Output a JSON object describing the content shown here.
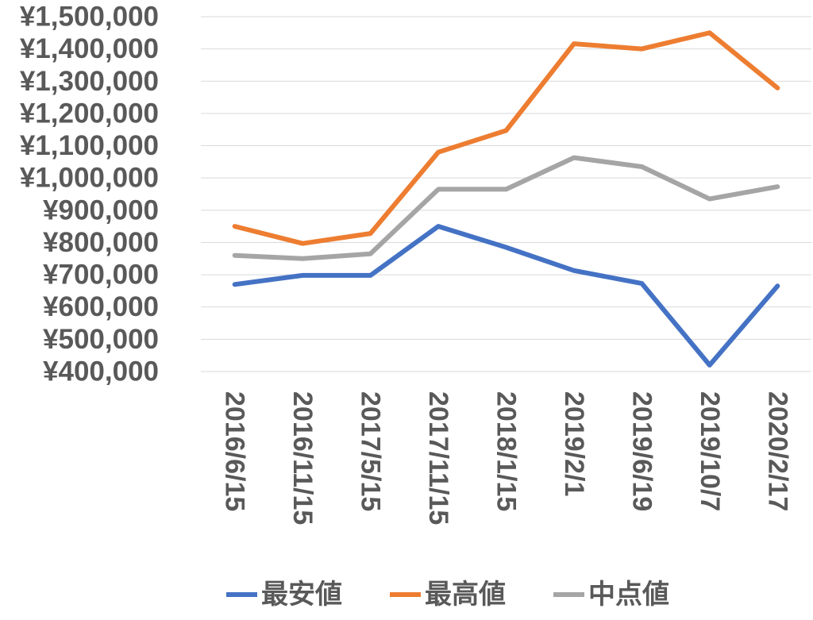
{
  "chart_data": {
    "type": "line",
    "categories": [
      "2016/6/15",
      "2016/11/15",
      "2017/5/15",
      "2017/11/15",
      "2018/1/15",
      "2019/2/1",
      "2019/6/19",
      "2019/10/7",
      "2020/2/17"
    ],
    "series": [
      {
        "name": "最安値",
        "color": "#4472c4",
        "values": [
          670000,
          698000,
          698000,
          850000,
          785000,
          713000,
          673000,
          420000,
          665000
        ]
      },
      {
        "name": "最高値",
        "color": "#ed7d31",
        "values": [
          850000,
          797000,
          828000,
          1080000,
          1147000,
          1416000,
          1400000,
          1450000,
          1279000
        ]
      },
      {
        "name": "中点値",
        "color": "#a5a5a5",
        "values": [
          760000,
          750000,
          765000,
          965000,
          965000,
          1063000,
          1035000,
          935000,
          973000
        ]
      }
    ],
    "ylim": [
      400000,
      1500000
    ],
    "yticks": [
      400000,
      500000,
      600000,
      700000,
      800000,
      900000,
      1000000,
      1100000,
      1200000,
      1300000,
      1400000,
      1500000
    ],
    "ytick_labels": [
      "¥400,000",
      "¥500,000",
      "¥600,000",
      "¥700,000",
      "¥800,000",
      "¥900,000",
      "¥1,000,000",
      "¥1,100,000",
      "¥1,200,000",
      "¥1,300,000",
      "¥1,400,000",
      "¥1,500,000"
    ],
    "grid": true,
    "legend_position": "bottom",
    "title": "",
    "xlabel": "",
    "ylabel": ""
  }
}
